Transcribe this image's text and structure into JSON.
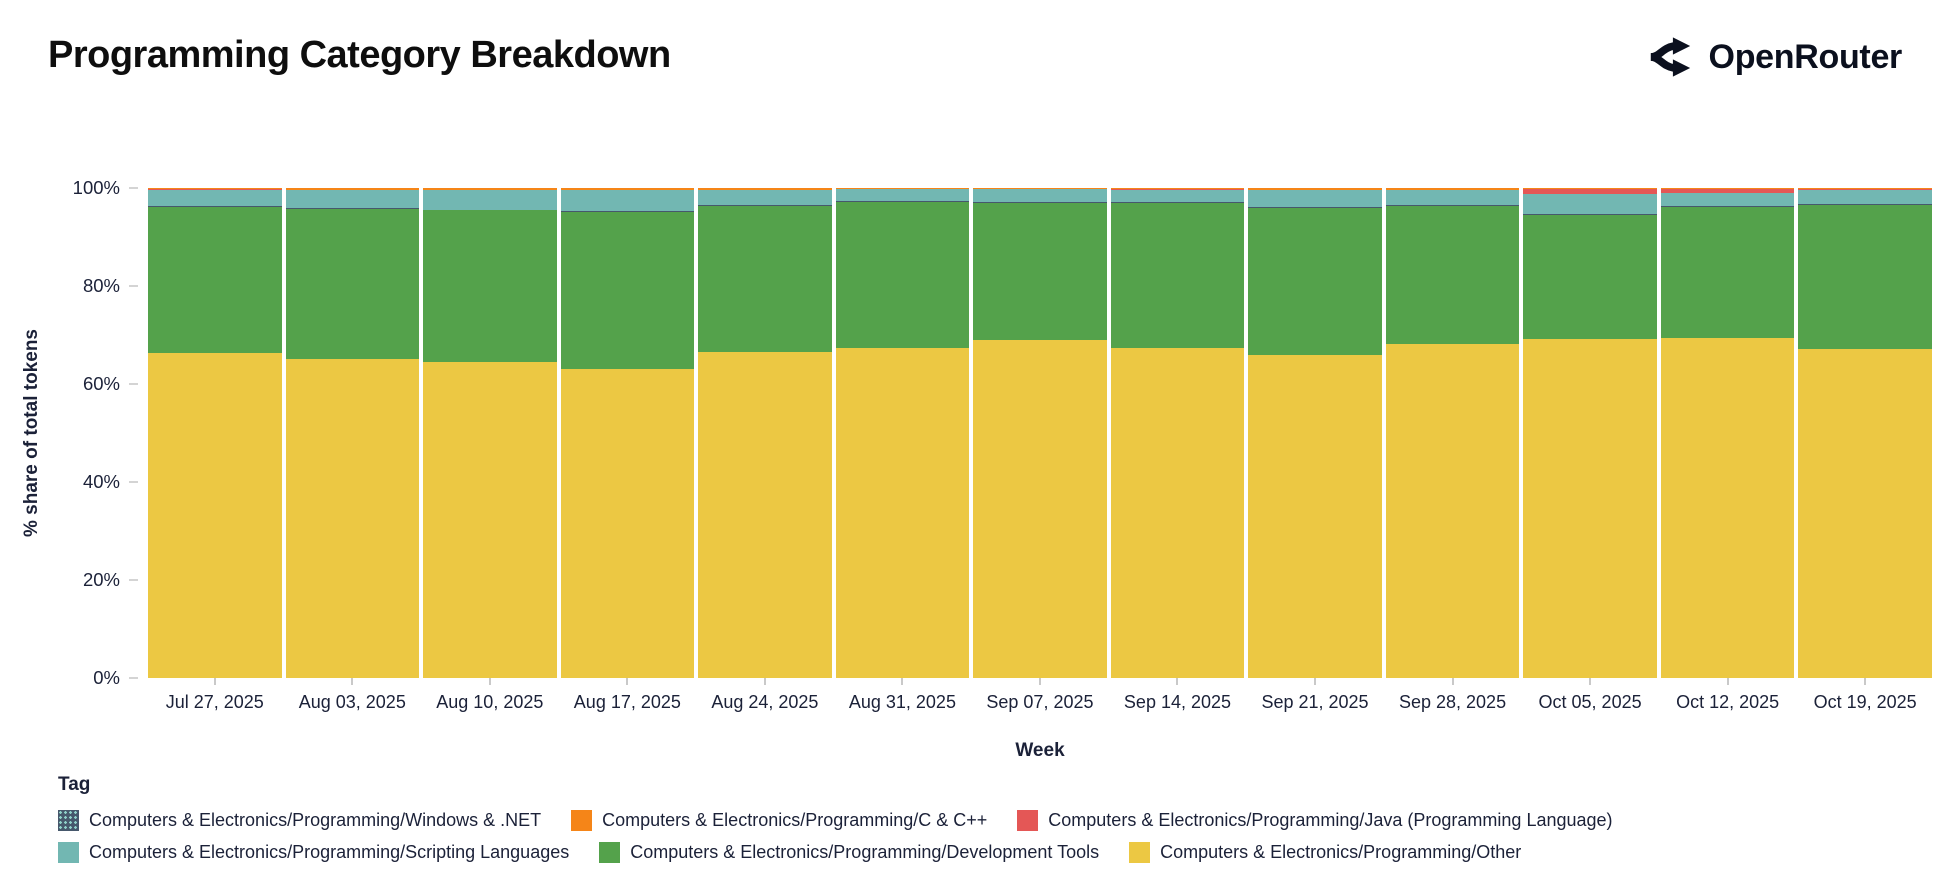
{
  "header": {
    "title": "Programming Category Breakdown",
    "brand": "OpenRouter"
  },
  "chart_data": {
    "type": "bar",
    "stacked": true,
    "title": "Programming Category Breakdown",
    "xlabel": "Week",
    "ylabel": "% share of total tokens",
    "ylim": [
      0,
      100
    ],
    "y_ticks": [
      "0%",
      "20%",
      "40%",
      "60%",
      "80%",
      "100%"
    ],
    "grid": false,
    "legend_title": "Tag",
    "legend_position": "bottom",
    "categories": [
      "Jul 27, 2025",
      "Aug 03, 2025",
      "Aug 10, 2025",
      "Aug 17, 2025",
      "Aug 24, 2025",
      "Aug 31, 2025",
      "Sep 07, 2025",
      "Sep 14, 2025",
      "Sep 21, 2025",
      "Sep 28, 2025",
      "Oct 05, 2025",
      "Oct 12, 2025",
      "Oct 19, 2025"
    ],
    "series": [
      {
        "key": "windows",
        "name": "Computers & Electronics/Programming/Windows & .NET",
        "color": "#46586c",
        "pattern": true,
        "pattern_dot_color": "#8fd0c8",
        "values": [
          0.2,
          0.2,
          0.2,
          0.2,
          0.2,
          0.2,
          0.2,
          0.2,
          0.2,
          0.2,
          0.2,
          0.2,
          0.2
        ]
      },
      {
        "key": "cpp",
        "name": "Computers & Electronics/Programming/C & C++",
        "color": "#f58518",
        "pattern": false,
        "values": [
          0.3,
          0.35,
          0.35,
          0.35,
          0.35,
          0.25,
          0.25,
          0.3,
          0.4,
          0.4,
          0.2,
          0.15,
          0.3
        ]
      },
      {
        "key": "java",
        "name": "Computers & Electronics/Programming/Java (Programming Language)",
        "color": "#e45756",
        "pattern": false,
        "values": [
          0.05,
          0.05,
          0.05,
          0.05,
          0.05,
          0.05,
          0.05,
          0.05,
          0.05,
          0.05,
          1.1,
          0.85,
          0.05
        ]
      },
      {
        "key": "scripting",
        "name": "Computers & Electronics/Programming/Scripting Languages",
        "color": "#72b7b2",
        "pattern": false,
        "values": [
          3.3,
          3.6,
          4.0,
          4.4,
          3.1,
          2.4,
          2.5,
          2.6,
          3.5,
          3.0,
          4.1,
          2.7,
          2.9
        ]
      },
      {
        "key": "devtools",
        "name": "Computers & Electronics/Programming/Development Tools",
        "color": "#54a24b",
        "pattern": false,
        "values": [
          29.9,
          30.8,
          30.9,
          31.9,
          29.9,
          29.7,
          28.1,
          29.6,
          30.0,
          28.2,
          25.3,
          26.8,
          29.4
        ]
      },
      {
        "key": "other",
        "name": "Computers & Electronics/Programming/Other",
        "color": "#ecc843",
        "pattern": false,
        "values": [
          66.3,
          65.1,
          64.6,
          63.2,
          66.5,
          67.5,
          69.0,
          67.3,
          65.9,
          68.2,
          69.2,
          69.4,
          67.3
        ]
      }
    ],
    "stack_order_bottom_to_top": [
      "other",
      "devtools",
      "windows",
      "scripting",
      "java",
      "cpp"
    ],
    "legend_rows": [
      [
        "windows",
        "cpp",
        "java"
      ],
      [
        "scripting",
        "devtools",
        "other"
      ]
    ]
  }
}
